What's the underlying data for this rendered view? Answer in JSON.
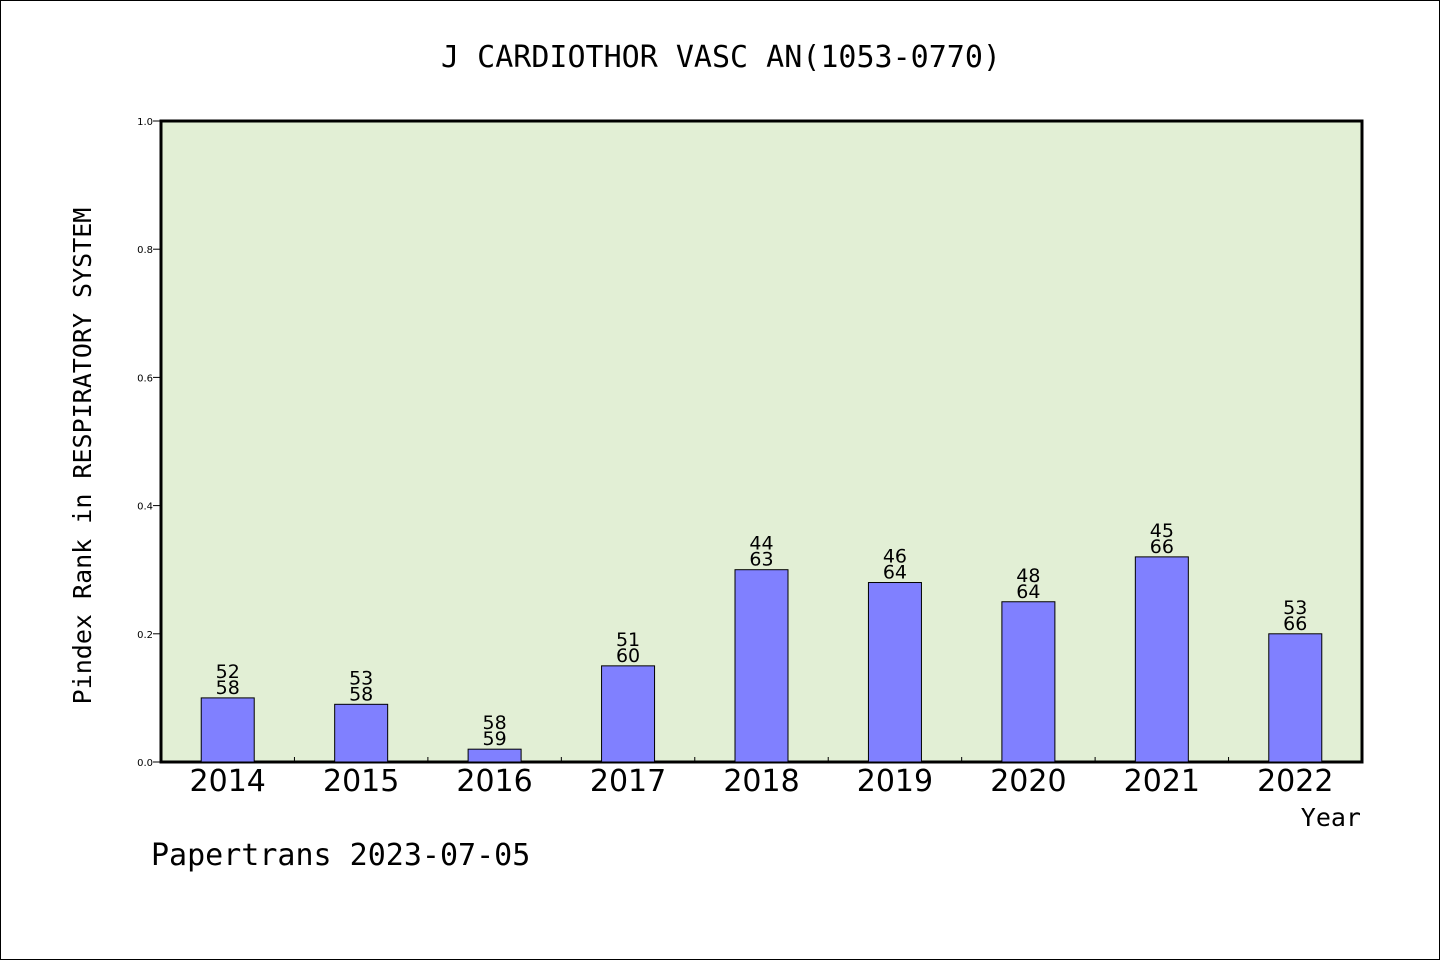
{
  "chart_data": {
    "type": "bar",
    "title": "J CARDIOTHOR VASC AN(1053-0770)",
    "xlabel": "Year",
    "ylabel": "Pindex Rank in RESPIRATORY SYSTEM",
    "ylim": [
      0,
      1.0
    ],
    "yticks": [
      "0.0",
      "0.2",
      "0.4",
      "0.6",
      "0.8",
      "1.0"
    ],
    "grid": false,
    "categories": [
      "2014",
      "2015",
      "2016",
      "2017",
      "2018",
      "2019",
      "2020",
      "2021",
      "2022"
    ],
    "values": [
      0.1,
      0.09,
      0.02,
      0.15,
      0.3,
      0.28,
      0.25,
      0.32,
      0.2
    ],
    "rank": [
      "52",
      "53",
      "58",
      "51",
      "44",
      "46",
      "48",
      "45",
      "53"
    ],
    "total": [
      "58",
      "58",
      "59",
      "60",
      "63",
      "64",
      "64",
      "66",
      "66"
    ],
    "colors": {
      "plot_bg": "#e2efd5",
      "bar": "#8080ff",
      "axis": "#000000"
    }
  },
  "footer": {
    "credit": "Papertrans 2023-07-05"
  }
}
